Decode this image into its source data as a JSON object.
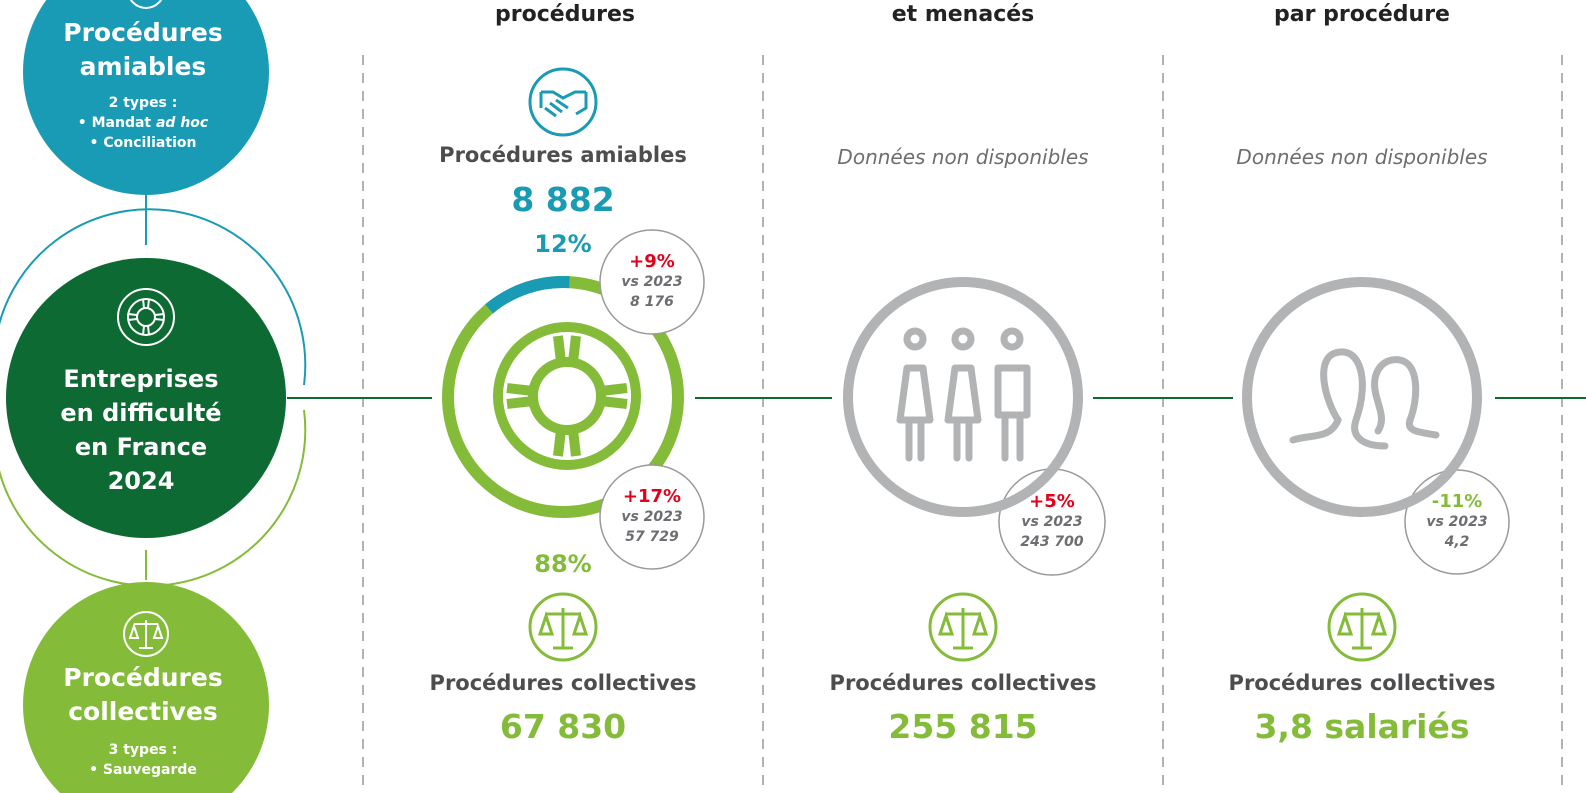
{
  "headers": [
    "procédures",
    "et menacés",
    "par procédure"
  ],
  "left": {
    "amiables": {
      "title_1": "Procédures",
      "title_2": "amiables",
      "types": "2 types :",
      "item_1": "• Mandat ",
      "item_1_italic": "ad hoc",
      "item_2": "• Conciliation"
    },
    "center": {
      "line_1": "Entreprises",
      "line_2": "en difficulté",
      "line_3": "en France",
      "line_4": "2024"
    },
    "collectives": {
      "title_1": "Procédures",
      "title_2": "collectives",
      "types": "3 types :",
      "item_1": "• Sauvegarde"
    }
  },
  "columns": [
    {
      "top_label": "Procédures amiables",
      "top_value": "8 882",
      "share_amiables": "12%",
      "share_collectives": "88%",
      "share_amiables_fraction": 0.12,
      "bubble_top": {
        "change": "+9%",
        "vs": "vs 2023",
        "prev": "8 176"
      },
      "bubble_bottom": {
        "change": "+17%",
        "vs": "vs 2023",
        "prev": "57 729"
      },
      "bottom_label": "Procédures collectives",
      "bottom_value": "67 830"
    },
    {
      "top_na": "Données non disponibles",
      "bubble": {
        "change": "+5%",
        "vs": "vs 2023",
        "prev": "243 700"
      },
      "bottom_label": "Procédures collectives",
      "bottom_value": "255 815"
    },
    {
      "top_na": "Données non disponibles",
      "bubble": {
        "change": "-11%",
        "vs": "vs 2023",
        "prev": "4,2"
      },
      "bottom_label": "Procédures collectives",
      "bottom_value": "3,8 salariés"
    }
  ],
  "colors": {
    "teal": "#1a9bb5",
    "dark_green": "#0d6a32",
    "light_green": "#84bc3a",
    "gray": "#b1b3b4",
    "red": "#e3001b"
  },
  "icons": [
    "lifebuoy-icon",
    "handshake-icon",
    "scales-icon",
    "people-icon",
    "heads-icon"
  ]
}
